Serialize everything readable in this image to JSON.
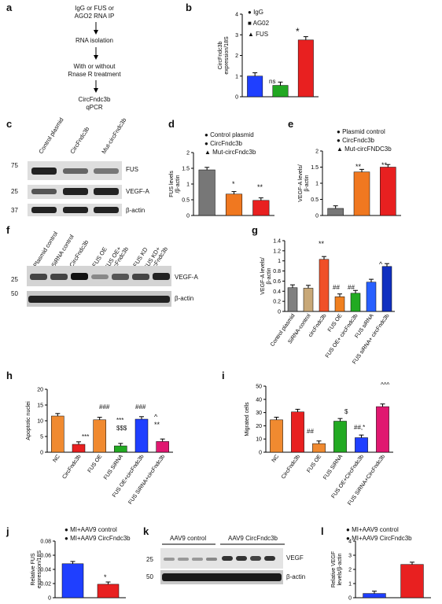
{
  "panels": {
    "a": {
      "label": "a",
      "steps": [
        "IgG or FUS or\nAGO2 RNA IP",
        "RNA isolation",
        "With or without\nRnase R treatment",
        "CircFndc3b\nqPCR"
      ]
    },
    "b": {
      "label": "b",
      "legend": [
        "IgG",
        "AG02",
        "FUS"
      ],
      "ylabel": "CircFndc3b\nexpression/18S",
      "annotations": [
        "ns",
        "*"
      ]
    },
    "c": {
      "label": "c",
      "lanes": [
        "Control plasmid",
        "CircFndc3b",
        "Mut-circFndc3b"
      ],
      "markers": [
        "75",
        "25",
        "37"
      ],
      "proteins": [
        "FUS",
        "VEGF-A",
        "β-actin"
      ]
    },
    "d": {
      "label": "d",
      "legend": [
        "Control plasmid",
        "CircFndc3b",
        "Mut-circFndc3b"
      ],
      "ylabel": "FUS levels\n/β-actin",
      "annotations": [
        "*",
        "**"
      ]
    },
    "e": {
      "label": "e",
      "legend": [
        "Plasmid control",
        "CircFndc3b",
        "Mut-circFNDC3b"
      ],
      "ylabel": "VEGF-A levels/\nβ-actin",
      "annotations": [
        "**",
        "**"
      ]
    },
    "f": {
      "label": "f",
      "lanes": [
        "Plasmid control",
        "SiRNA control",
        "CircFndc3b",
        "FUS OE",
        "FUS OE+\ncircFndc3b",
        "FUS KD",
        "FUS KD+\ncircFndc3b"
      ],
      "markers": [
        "25",
        "50"
      ],
      "proteins": [
        "VEGF-A",
        "β-actin"
      ]
    },
    "g": {
      "label": "g",
      "ylabel": "VEGF-A levels/\nβ-actin",
      "annotations": [
        "**",
        "##",
        "##",
        "^"
      ]
    },
    "h": {
      "label": "h",
      "ylabel": "Apoptotic nuclei",
      "annotations": [
        "***",
        "###",
        "***\n$$$",
        "###",
        "^\n**"
      ]
    },
    "i": {
      "label": "i",
      "ylabel": "Migrated cells",
      "annotations": [
        "##",
        "$",
        "##,*",
        "^^^"
      ]
    },
    "j": {
      "label": "j",
      "legend": [
        "MI+AAV9 control",
        "MI+AAV9 CircFndc3b"
      ],
      "ylabel": "Relative FUS\nexpression/18S",
      "annotations": [
        "*"
      ]
    },
    "k": {
      "label": "k",
      "groups": [
        "AAV9 control",
        "AAV9 CircFndc3b"
      ],
      "markers": [
        "25",
        "50"
      ],
      "proteins": [
        "VEGF",
        "β-actin"
      ]
    },
    "l": {
      "label": "l",
      "legend": [
        "MI+AAV9 control",
        "MI+AAV9 CircFndc3b"
      ],
      "ylabel": "Relative VEGF\nlevels/β-actin"
    }
  },
  "chart_data": [
    {
      "id": "b",
      "type": "bar",
      "categories": [
        "IgG",
        "AG02",
        "FUS"
      ],
      "values": [
        1.0,
        0.55,
        2.75
      ],
      "colors": [
        "#1f3fff",
        "#22a822",
        "#e82020"
      ],
      "ylim": [
        0,
        4
      ],
      "yticks": [
        0,
        1,
        2,
        3,
        4
      ],
      "ylabel": "CircFndc3b\nexpression/18S"
    },
    {
      "id": "d",
      "type": "bar",
      "categories": [
        "Control plasmid",
        "CircFndc3b",
        "Mut-circFndc3b"
      ],
      "values": [
        1.45,
        0.68,
        0.48
      ],
      "colors": [
        "#777777",
        "#f07820",
        "#e82020"
      ],
      "ylim": [
        0,
        2.0
      ],
      "yticks": [
        0.0,
        0.5,
        1.0,
        1.5,
        2.0
      ],
      "ylabel": "FUS levels\n/β-actin"
    },
    {
      "id": "e",
      "type": "bar",
      "categories": [
        "Plasmid control",
        "CircFndc3b",
        "Mut-circFNDC3b"
      ],
      "values": [
        0.22,
        1.35,
        1.5
      ],
      "colors": [
        "#777777",
        "#f07820",
        "#e82020"
      ],
      "ylim": [
        0,
        2.0
      ],
      "yticks": [
        0.0,
        0.5,
        1.0,
        1.5,
        2.0
      ],
      "ylabel": "VEGF-A levels/\nβ-actin"
    },
    {
      "id": "g",
      "type": "bar",
      "categories": [
        "Control plasmid",
        "SiRNA-control",
        "circFndc3b",
        "FUS OE",
        "FUS OE+ circFndc3b",
        "FUS siRNA",
        "FUS siRNA+ circFndc3b"
      ],
      "values": [
        0.47,
        0.46,
        1.03,
        0.29,
        0.36,
        0.58,
        0.89
      ],
      "colors": [
        "#808080",
        "#c8a878",
        "#f05028",
        "#f08020",
        "#22aa22",
        "#2860ff",
        "#1030c0"
      ],
      "ylim": [
        0,
        1.4
      ],
      "yticks": [
        0.0,
        0.2,
        0.4,
        0.6,
        0.8,
        1.0,
        1.2,
        1.4
      ],
      "ylabel": "VEGF-A levels/\nβ-actin"
    },
    {
      "id": "h",
      "type": "bar",
      "categories": [
        "NC",
        "CircFndc3b",
        "FUS OE",
        "FUS SiRNA",
        "FUS OE+circFndc3b",
        "FUS SiRNA+circFndc3b"
      ],
      "values": [
        11.5,
        2.5,
        10.3,
        2.0,
        10.5,
        3.4
      ],
      "colors": [
        "#f08a30",
        "#e82020",
        "#f08a30",
        "#22aa22",
        "#1f3fff",
        "#e01870"
      ],
      "ylim": [
        0,
        20
      ],
      "yticks": [
        0,
        5,
        10,
        15,
        20
      ],
      "ylabel": "Apoptotic nuclei"
    },
    {
      "id": "i",
      "type": "bar",
      "categories": [
        "NC",
        "CircFndc3b",
        "FUS OE",
        "FUS SiRNA",
        "FUS OE+CircFndc3b",
        "FUS SiRNA+CircFndc3b"
      ],
      "values": [
        24.5,
        30.5,
        6.5,
        23.5,
        11.0,
        34.5
      ],
      "colors": [
        "#f08a30",
        "#e82020",
        "#f08a30",
        "#22aa22",
        "#1f3fff",
        "#e01870"
      ],
      "ylim": [
        0,
        50
      ],
      "yticks": [
        0,
        10,
        20,
        30,
        40,
        50
      ],
      "ylabel": "Migrated cells"
    },
    {
      "id": "j",
      "type": "bar",
      "categories": [
        "MI+AAV9 control",
        "MI+AAV9 CircFndc3b"
      ],
      "values": [
        0.048,
        0.019
      ],
      "colors": [
        "#1f3fff",
        "#e82020"
      ],
      "ylim": [
        0,
        0.08
      ],
      "yticks": [
        0,
        0.02,
        0.04,
        0.06,
        0.08
      ],
      "ylabel": "Relative FUS\nexpression/18S"
    },
    {
      "id": "l",
      "type": "bar",
      "categories": [
        "MI+AAV9 control",
        "MI+AAV9 CircFndc3b"
      ],
      "values": [
        0.3,
        2.35
      ],
      "colors": [
        "#1f3fff",
        "#e82020"
      ],
      "ylim": [
        0,
        4
      ],
      "yticks": [
        0,
        1,
        2,
        3,
        4
      ],
      "ylabel": "Relative VEGF\nlevels/β-actin"
    }
  ]
}
